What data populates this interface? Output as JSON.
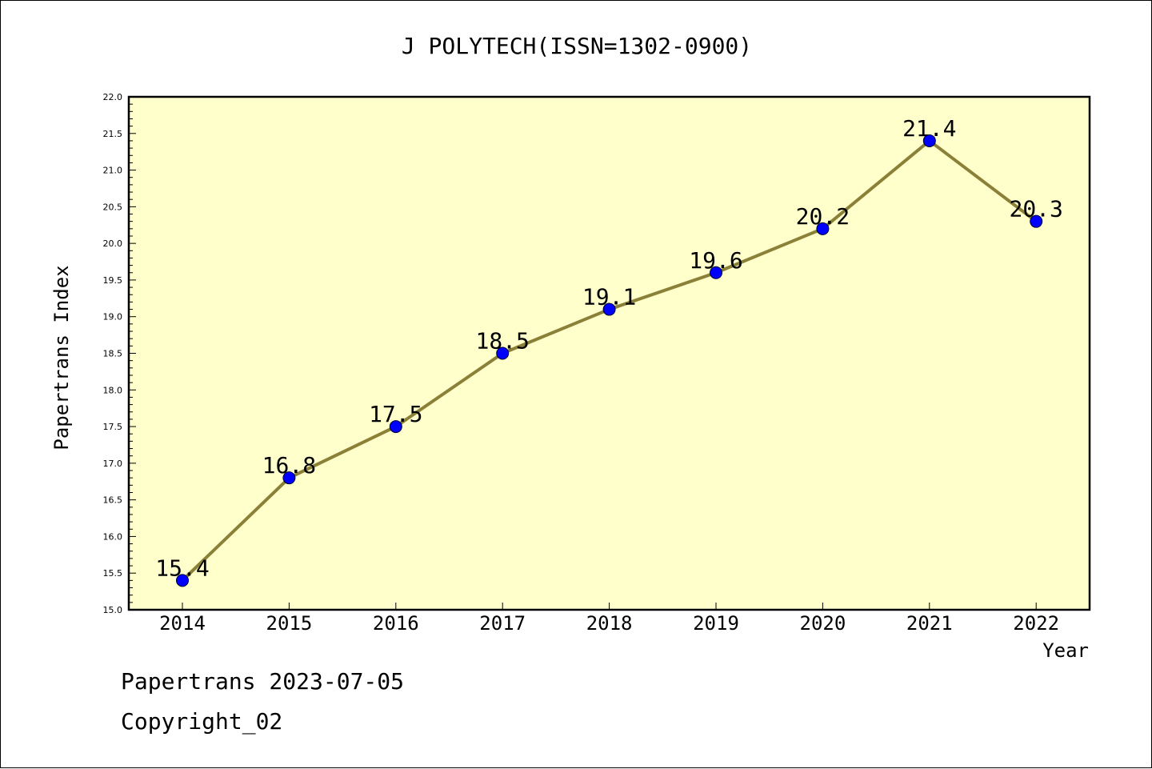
{
  "chart_data": {
    "type": "line",
    "title": "J POLYTECH(ISSN=1302-0900)",
    "xlabel": "Year",
    "ylabel": "Papertrans Index",
    "categories": [
      "2014",
      "2015",
      "2016",
      "2017",
      "2018",
      "2019",
      "2020",
      "2021",
      "2022"
    ],
    "values": [
      15.4,
      16.8,
      17.5,
      18.5,
      19.1,
      19.6,
      20.2,
      21.4,
      20.3
    ],
    "data_labels": [
      "15.4",
      "16.8",
      "17.5",
      "18.5",
      "19.1",
      "19.6",
      "20.2",
      "21.4",
      "20.3"
    ],
    "ylim": [
      15.0,
      22.0
    ],
    "yticks": [
      "15.0",
      "15.5",
      "16.0",
      "16.5",
      "17.0",
      "17.5",
      "18.0",
      "18.5",
      "19.0",
      "19.5",
      "20.0",
      "20.5",
      "21.0",
      "21.5",
      "22.0"
    ],
    "grid": false,
    "legend": "none",
    "colors": {
      "plot_background": "#ffffcc",
      "line": "#8b8038",
      "marker": "#0000ff"
    }
  },
  "footer": {
    "source": "Papertrans 2023-07-05",
    "copyright": "Copyright_02"
  }
}
